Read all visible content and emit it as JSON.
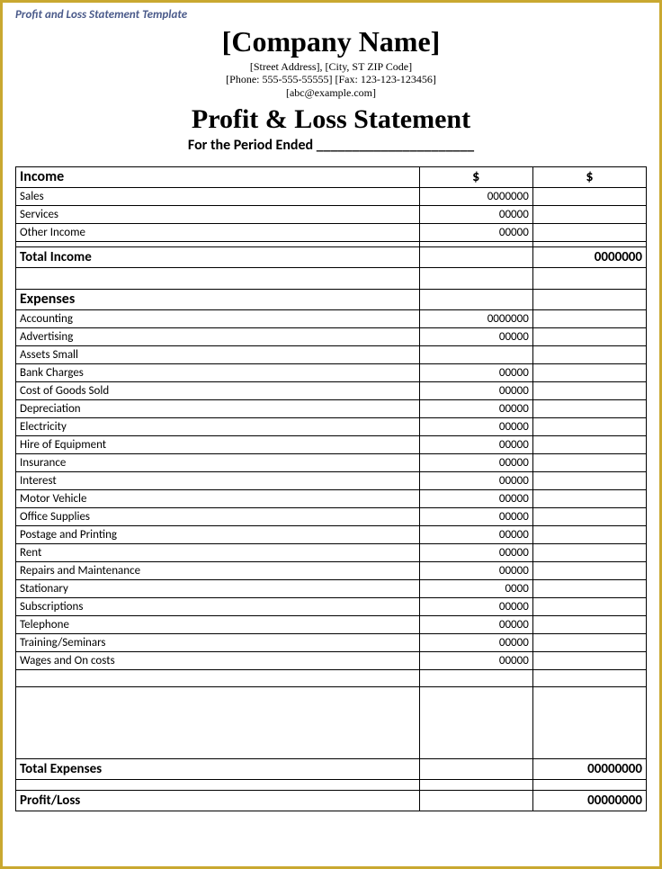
{
  "doc_title": "Profit and Loss Statement Template",
  "header": {
    "company": "[Company Name]",
    "address": "[Street Address], [City, ST ZIP Code]",
    "contact": "[Phone: 555-555-55555] [Fax: 123-123-123456]",
    "email": "[abc@example.com]",
    "statement_title": "Profit & Loss Statement",
    "period": "For the Period Ended ______________________"
  },
  "currency": "$",
  "income": {
    "heading": "Income",
    "rows": [
      {
        "label": "Sales",
        "value": "0000000"
      },
      {
        "label": "Services",
        "value": "00000"
      },
      {
        "label": "Other Income",
        "value": "00000"
      }
    ],
    "total_label": "Total Income",
    "total_value": "0000000"
  },
  "expenses": {
    "heading": "Expenses",
    "rows": [
      {
        "label": "Accounting",
        "value": "0000000"
      },
      {
        "label": "Advertising",
        "value": "00000"
      },
      {
        "label": "Assets Small",
        "value": ""
      },
      {
        "label": "Bank Charges",
        "value": "00000"
      },
      {
        "label": "Cost of Goods Sold",
        "value": "00000"
      },
      {
        "label": "Depreciation",
        "value": "00000"
      },
      {
        "label": "Electricity",
        "value": "00000"
      },
      {
        "label": "Hire of Equipment",
        "value": "00000"
      },
      {
        "label": "Insurance",
        "value": "00000"
      },
      {
        "label": "Interest",
        "value": "00000"
      },
      {
        "label": "Motor Vehicle",
        "value": "00000"
      },
      {
        "label": "Office Supplies",
        "value": "00000"
      },
      {
        "label": "Postage and Printing",
        "value": "00000"
      },
      {
        "label": "Rent",
        "value": "00000"
      },
      {
        "label": "Repairs and Maintenance",
        "value": "00000"
      },
      {
        "label": "Stationary",
        "value": "0000"
      },
      {
        "label": "Subscriptions",
        "value": "00000"
      },
      {
        "label": "Telephone",
        "value": "00000"
      },
      {
        "label": "Training/Seminars",
        "value": "00000"
      },
      {
        "label": "Wages and On costs",
        "value": "00000"
      }
    ],
    "total_label": "Total Expenses",
    "total_value": "00000000"
  },
  "profit": {
    "label": "Profit/Loss",
    "value": "00000000"
  }
}
